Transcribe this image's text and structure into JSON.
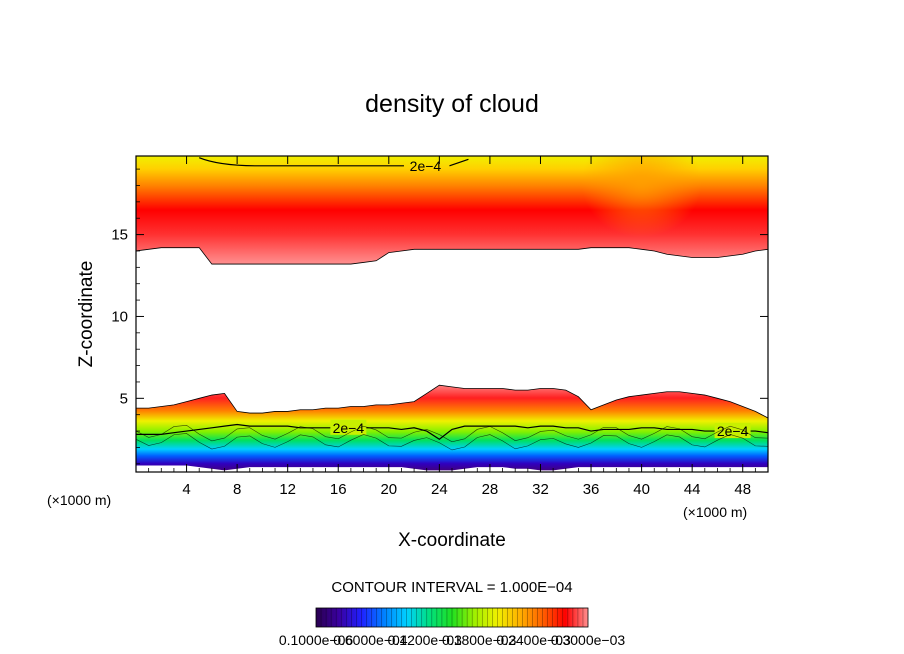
{
  "chart_data": {
    "type": "heatmap",
    "title": "density of cloud",
    "xlabel": "X-coordinate",
    "ylabel": "Z-coordinate",
    "x_unit": "(×1000 m)",
    "x_range": [
      0,
      50
    ],
    "y_range": [
      0.5,
      19.8
    ],
    "x_ticks": [
      4,
      8,
      12,
      16,
      20,
      24,
      28,
      32,
      36,
      40,
      44,
      48
    ],
    "y_ticks": [
      5,
      10,
      15
    ],
    "contour_interval_text": "CONTOUR INTERVAL = 1.000E−04",
    "contour_label": "2e−4",
    "colorbar_labels": [
      "0.1000e−06",
      "0.6000e−04",
      "0.1200e−03",
      "0.1800e−03",
      "0.2400e−03",
      "0.3000e−03"
    ],
    "colormap": [
      "#2a0050",
      "#3a00a0",
      "#2020ff",
      "#0080ff",
      "#00d0ff",
      "#00e080",
      "#20e020",
      "#a0f000",
      "#f0f000",
      "#ffb000",
      "#ff6000",
      "#ff0000",
      "#ff9090"
    ],
    "upper_layer": {
      "description_values": "cloud density upper layer, max near z=15.8",
      "bottom_z": [
        14.0,
        14.1,
        14.2,
        14.2,
        14.2,
        14.2,
        13.2,
        13.2,
        13.2,
        13.2,
        13.2,
        13.2,
        13.2,
        13.2,
        13.2,
        13.2,
        13.2,
        13.2,
        13.3,
        13.4,
        13.9,
        14.0,
        14.1,
        14.1,
        14.1,
        14.1,
        14.1,
        14.1,
        14.1,
        14.1,
        14.1,
        14.1,
        14.1,
        14.1,
        14.1,
        14.1,
        14.2,
        14.2,
        14.2,
        14.2,
        14.1,
        14.0,
        13.8,
        13.7,
        13.6,
        13.6,
        13.6,
        13.7,
        13.8,
        14.0,
        14.1
      ],
      "peak_z": 15.8,
      "contour_2e4_z": 19.2,
      "contour_2e4_x": [
        5,
        21
      ]
    },
    "lower_layer": {
      "top_z": [
        4.4,
        4.4,
        4.5,
        4.6,
        4.8,
        5.0,
        5.2,
        5.3,
        4.2,
        4.1,
        4.1,
        4.2,
        4.2,
        4.3,
        4.3,
        4.4,
        4.4,
        4.5,
        4.5,
        4.6,
        4.6,
        4.7,
        4.8,
        5.3,
        5.8,
        5.7,
        5.6,
        5.6,
        5.6,
        5.6,
        5.5,
        5.5,
        5.6,
        5.6,
        5.5,
        5.1,
        4.3,
        4.6,
        4.9,
        5.1,
        5.2,
        5.3,
        5.4,
        5.4,
        5.3,
        5.2,
        5.0,
        4.8,
        4.5,
        4.2,
        3.8
      ],
      "contour_2e4_z": [
        2.8,
        2.8,
        2.8,
        2.9,
        3.0,
        3.1,
        3.2,
        3.3,
        3.4,
        3.3,
        3.3,
        3.3,
        3.3,
        3.2,
        3.2,
        3.2,
        3.2,
        3.2,
        3.2,
        3.2,
        3.2,
        3.1,
        3.2,
        3.0,
        2.5,
        3.1,
        3.3,
        3.3,
        3.3,
        3.3,
        3.3,
        3.2,
        3.3,
        3.3,
        3.2,
        3.2,
        3.0,
        3.1,
        3.1,
        3.1,
        3.2,
        3.2,
        3.1,
        3.1,
        3.1,
        3.0,
        3.0,
        3.0,
        3.0,
        3.0,
        2.9
      ],
      "bottom_z": [
        0.9,
        0.9,
        0.9,
        0.9,
        0.9,
        0.8,
        0.7,
        0.6,
        0.7,
        0.8,
        0.8,
        0.8,
        0.8,
        0.8,
        0.8,
        0.8,
        0.8,
        0.8,
        0.8,
        0.8,
        0.8,
        0.8,
        0.7,
        0.6,
        0.6,
        0.6,
        0.7,
        0.8,
        0.8,
        0.8,
        0.7,
        0.7,
        0.6,
        0.6,
        0.7,
        0.8,
        0.8,
        0.8,
        0.8,
        0.8,
        0.8,
        0.8,
        0.8,
        0.8,
        0.8,
        0.8,
        0.8,
        0.8,
        0.8,
        0.8,
        0.8
      ]
    }
  }
}
